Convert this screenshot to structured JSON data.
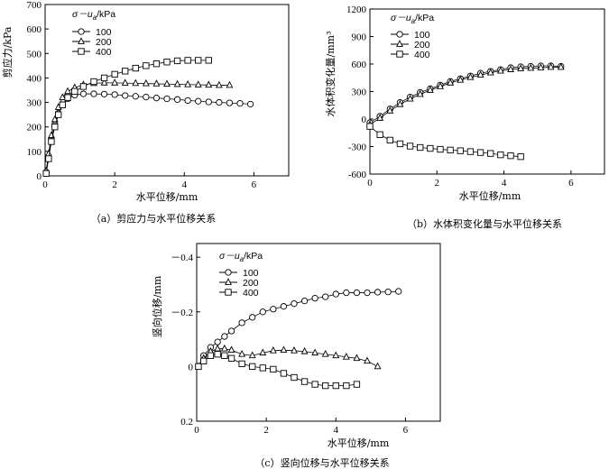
{
  "chart_data": [
    {
      "id": "a",
      "type": "scatter",
      "caption": "（a）剪应力与水平位移关系",
      "xlabel": "水平位移/mm",
      "ylabel": "剪应力/kPa",
      "xlim": [
        0,
        7
      ],
      "ylim": [
        0,
        700
      ],
      "xticks": [
        0,
        2,
        4,
        6
      ],
      "yticks": [
        0,
        100,
        200,
        300,
        400,
        500,
        600,
        700
      ],
      "legend_title": "σ－u_a/kPa",
      "legend_title_parts": [
        "σ－u",
        "a",
        "/kPa"
      ],
      "series": [
        {
          "name": "100",
          "marker": "circle",
          "x": [
            0.03,
            0.1,
            0.18,
            0.28,
            0.38,
            0.5,
            0.65,
            0.85,
            1.1,
            1.4,
            1.7,
            2.0,
            2.3,
            2.6,
            2.9,
            3.2,
            3.5,
            3.8,
            4.1,
            4.4,
            4.7,
            5.0,
            5.3,
            5.6,
            5.9
          ],
          "y": [
            15,
            80,
            150,
            210,
            255,
            290,
            315,
            330,
            335,
            335,
            334,
            332,
            328,
            325,
            322,
            318,
            315,
            312,
            308,
            305,
            302,
            300,
            298,
            296,
            293
          ]
        },
        {
          "name": "200",
          "marker": "triangle",
          "x": [
            0.03,
            0.1,
            0.18,
            0.28,
            0.38,
            0.5,
            0.65,
            0.85,
            1.1,
            1.4,
            1.7,
            2.0,
            2.3,
            2.6,
            2.9,
            3.2,
            3.5,
            3.8,
            4.1,
            4.4,
            4.7,
            5.0,
            5.3
          ],
          "y": [
            20,
            90,
            165,
            230,
            280,
            320,
            345,
            360,
            372,
            378,
            380,
            380,
            379,
            378,
            377,
            376,
            375,
            374,
            373,
            372,
            371,
            370,
            370
          ]
        },
        {
          "name": "400",
          "marker": "square",
          "x": [
            0.03,
            0.1,
            0.18,
            0.28,
            0.38,
            0.5,
            0.65,
            0.85,
            1.1,
            1.4,
            1.7,
            2.0,
            2.3,
            2.6,
            2.9,
            3.2,
            3.5,
            3.8,
            4.1,
            4.4,
            4.7
          ],
          "y": [
            10,
            70,
            140,
            200,
            250,
            290,
            320,
            345,
            365,
            385,
            400,
            415,
            428,
            440,
            450,
            458,
            465,
            470,
            472,
            472,
            472
          ]
        }
      ]
    },
    {
      "id": "b",
      "type": "scatter",
      "caption": "（b）水体积变化量与水平位移关系",
      "xlabel": "水平位移/mm",
      "ylabel": "水体积变化量/mm³",
      "xlim": [
        0,
        7
      ],
      "ylim": [
        -600,
        1200
      ],
      "xticks": [
        0,
        2,
        4,
        6
      ],
      "yticks": [
        -600,
        -300,
        0,
        300,
        600,
        900,
        1200
      ],
      "legend_title": "σ－u_a/kPa",
      "legend_title_parts": [
        "σ－u",
        "a",
        "/kPa"
      ],
      "series": [
        {
          "name": "100",
          "marker": "circle",
          "x": [
            0.0,
            0.3,
            0.6,
            0.9,
            1.2,
            1.5,
            1.8,
            2.1,
            2.4,
            2.7,
            3.0,
            3.3,
            3.6,
            3.9,
            4.2,
            4.5,
            4.8,
            5.1,
            5.4,
            5.7
          ],
          "y": [
            -40,
            30,
            110,
            180,
            240,
            290,
            330,
            370,
            410,
            440,
            470,
            500,
            520,
            540,
            560,
            570,
            575,
            580,
            580,
            575
          ]
        },
        {
          "name": "200",
          "marker": "triangle",
          "x": [
            0.0,
            0.3,
            0.6,
            0.9,
            1.2,
            1.5,
            1.8,
            2.1,
            2.4,
            2.7,
            3.0,
            3.3,
            3.6,
            3.9,
            4.2,
            4.5,
            4.8,
            5.1,
            5.4,
            5.7
          ],
          "y": [
            -60,
            10,
            90,
            160,
            220,
            270,
            315,
            355,
            395,
            425,
            455,
            480,
            505,
            525,
            540,
            550,
            555,
            560,
            565,
            565
          ]
        },
        {
          "name": "400",
          "marker": "square",
          "x": [
            0.0,
            0.3,
            0.6,
            0.9,
            1.2,
            1.5,
            1.8,
            2.1,
            2.4,
            2.7,
            3.0,
            3.3,
            3.6,
            3.9,
            4.2,
            4.5
          ],
          "y": [
            -80,
            -170,
            -230,
            -270,
            -295,
            -310,
            -320,
            -330,
            -338,
            -346,
            -355,
            -365,
            -375,
            -390,
            -400,
            -410
          ]
        }
      ]
    },
    {
      "id": "c",
      "type": "scatter",
      "caption": "（c）竖向位移与水平位移关系",
      "xlabel": "水平位移/mm",
      "ylabel": "竖向位移/mm",
      "xlim": [
        0,
        7
      ],
      "ylim": [
        0.2,
        -0.45
      ],
      "xticks": [
        0,
        2,
        4,
        6
      ],
      "yticks": [
        -0.4,
        -0.2,
        0,
        0.2
      ],
      "ytick_labels": [
        "－0.4",
        "－0.2",
        "0",
        "0.2"
      ],
      "legend_title": "σ－u_a/kPa",
      "legend_title_parts": [
        "σ－u",
        "a",
        "/kPa"
      ],
      "series": [
        {
          "name": "100",
          "marker": "circle",
          "x": [
            0.05,
            0.2,
            0.4,
            0.6,
            0.8,
            1.0,
            1.3,
            1.6,
            1.9,
            2.2,
            2.5,
            2.8,
            3.1,
            3.4,
            3.7,
            4.0,
            4.3,
            4.6,
            4.9,
            5.2,
            5.5,
            5.8
          ],
          "y": [
            0.0,
            -0.04,
            -0.07,
            -0.09,
            -0.11,
            -0.13,
            -0.16,
            -0.18,
            -0.2,
            -0.21,
            -0.22,
            -0.23,
            -0.24,
            -0.25,
            -0.255,
            -0.265,
            -0.27,
            -0.27,
            -0.27,
            -0.272,
            -0.273,
            -0.275
          ]
        },
        {
          "name": "200",
          "marker": "triangle",
          "x": [
            0.05,
            0.2,
            0.4,
            0.6,
            0.8,
            1.0,
            1.3,
            1.6,
            1.9,
            2.2,
            2.5,
            2.8,
            3.1,
            3.4,
            3.7,
            4.0,
            4.3,
            4.6,
            4.9,
            5.2
          ],
          "y": [
            0.0,
            -0.03,
            -0.055,
            -0.065,
            -0.065,
            -0.06,
            -0.045,
            -0.04,
            -0.05,
            -0.058,
            -0.06,
            -0.058,
            -0.055,
            -0.05,
            -0.045,
            -0.04,
            -0.035,
            -0.03,
            -0.02,
            0.0
          ]
        },
        {
          "name": "400",
          "marker": "square",
          "x": [
            0.05,
            0.2,
            0.4,
            0.6,
            0.8,
            1.0,
            1.3,
            1.6,
            1.9,
            2.2,
            2.5,
            2.8,
            3.1,
            3.4,
            3.7,
            4.0,
            4.3,
            4.6
          ],
          "y": [
            0.0,
            -0.02,
            -0.04,
            -0.045,
            -0.04,
            -0.03,
            -0.01,
            0.0,
            0.005,
            0.01,
            0.025,
            0.04,
            0.055,
            0.065,
            0.07,
            0.07,
            0.07,
            0.065
          ]
        }
      ]
    }
  ]
}
